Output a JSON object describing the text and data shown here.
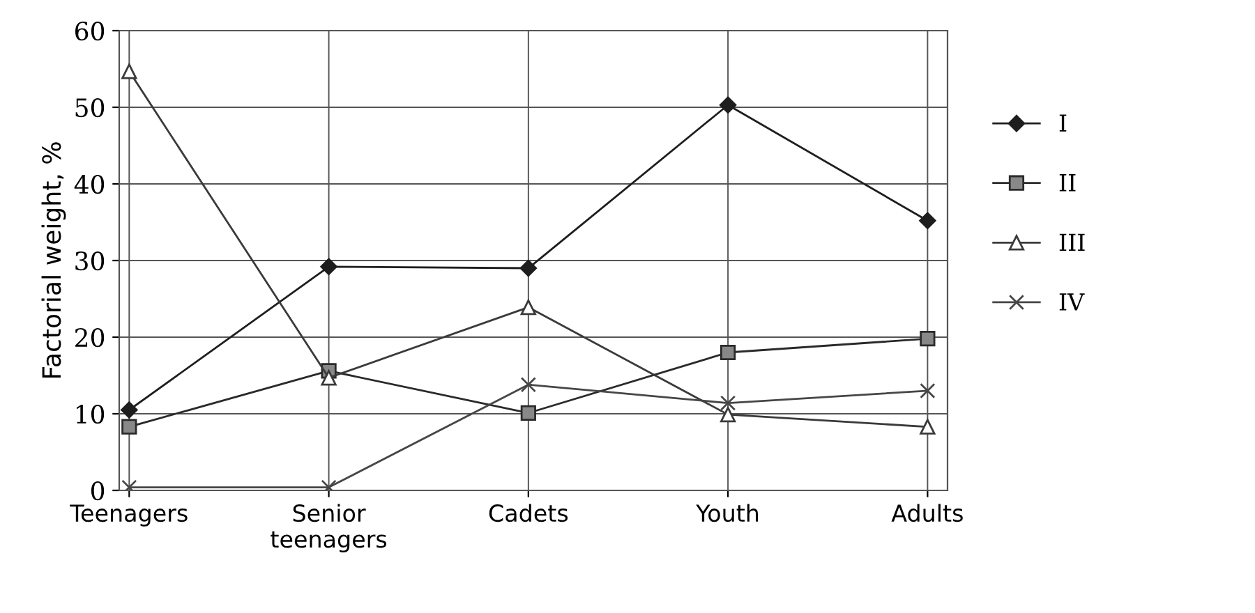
{
  "chart_data": {
    "type": "line",
    "ylabel": "Factorial weight, %",
    "categories": [
      "Teenagers",
      "Senior\nteenagers",
      "Cadets",
      "Youth",
      "Adults"
    ],
    "ylim": [
      0,
      60
    ],
    "yticks": [
      0,
      10,
      20,
      30,
      40,
      50,
      60
    ],
    "grid": true,
    "legend": "right",
    "line_style": "solid",
    "series": [
      {
        "name": "I",
        "color": "#1e1e1e",
        "marker": "diamond",
        "values": [
          10.5,
          29.2,
          29,
          50.3,
          35.2
        ]
      },
      {
        "name": "II",
        "color": "#2a2a2a",
        "marker": "square",
        "values": [
          8.3,
          15.6,
          10.1,
          18,
          19.8
        ]
      },
      {
        "name": "III",
        "color": "#3a3a3a",
        "marker": "triangle",
        "values": [
          54.7,
          14.7,
          23.9,
          9.9,
          8.3
        ]
      },
      {
        "name": "IV",
        "color": "#464646",
        "marker": "cross",
        "values": [
          0.4,
          0.4,
          13.8,
          11.4,
          13
        ]
      }
    ]
  }
}
